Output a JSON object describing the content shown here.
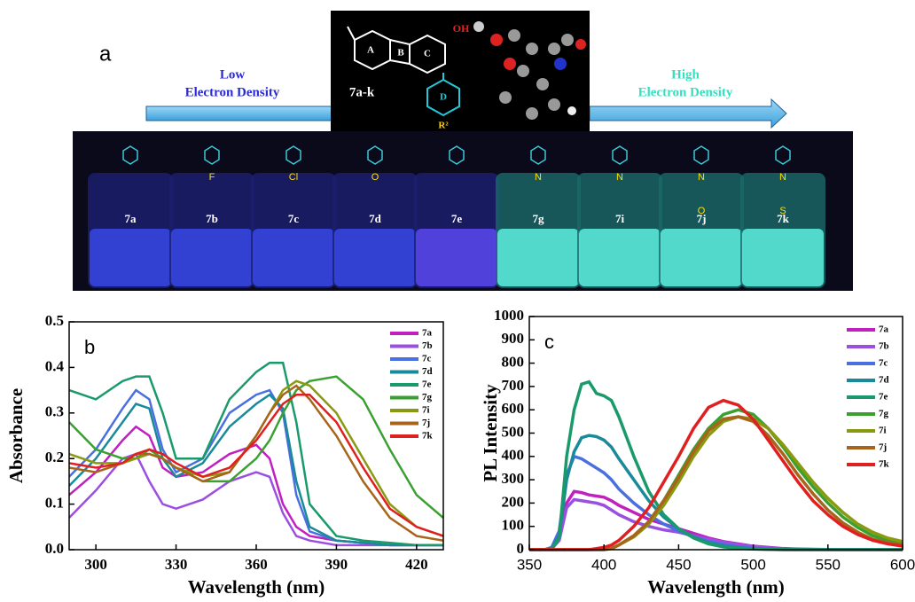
{
  "panel_a": {
    "label": "a",
    "left": [
      "Low",
      "Electron Density"
    ],
    "right": [
      "High",
      "Electron Density"
    ],
    "molecule": {
      "name": "7a-k",
      "rings": [
        "A",
        "B",
        "C",
        "D"
      ],
      "oh": "OH",
      "r": "R²"
    },
    "vials": [
      {
        "label": "7a"
      },
      {
        "label": "7b",
        "atoms": [
          "F"
        ]
      },
      {
        "label": "7c",
        "atoms": [
          "Cl"
        ]
      },
      {
        "label": "7d",
        "atoms": [
          "O"
        ]
      },
      {
        "label": "7e"
      },
      {
        "label": "7g",
        "atoms": [
          "N"
        ]
      },
      {
        "label": "7i",
        "atoms": [
          "N"
        ]
      },
      {
        "label": "7j",
        "atoms": [
          "N",
          "O"
        ]
      },
      {
        "label": "7k",
        "atoms": [
          "N",
          "S"
        ]
      }
    ]
  },
  "chart_data": [
    {
      "type": "line",
      "panel": "b",
      "xlabel": "Wavelength (nm)",
      "ylabel": "Absorbance",
      "x": [
        290,
        300,
        310,
        315,
        320,
        325,
        330,
        340,
        350,
        360,
        365,
        370,
        375,
        380,
        390,
        400,
        410,
        420,
        430
      ],
      "xlim": [
        290,
        430
      ],
      "ylim": [
        0,
        0.5
      ],
      "xticks": [
        300,
        330,
        360,
        390,
        420
      ],
      "yticks": [
        0.0,
        0.1,
        0.2,
        0.3,
        0.4,
        0.5
      ],
      "legend": "upper right",
      "series": [
        {
          "name": "7a",
          "color": "#c020c0",
          "values": [
            0.12,
            0.17,
            0.24,
            0.27,
            0.25,
            0.18,
            0.16,
            0.17,
            0.21,
            0.23,
            0.2,
            0.1,
            0.05,
            0.03,
            0.02,
            0.015,
            0.01,
            0.01,
            0.01
          ]
        },
        {
          "name": "7b",
          "color": "#9b4fe0",
          "values": [
            0.07,
            0.13,
            0.2,
            0.21,
            0.15,
            0.1,
            0.09,
            0.11,
            0.15,
            0.17,
            0.16,
            0.08,
            0.03,
            0.02,
            0.01,
            0.01,
            0.01,
            0.01,
            0.01
          ]
        },
        {
          "name": "7c",
          "color": "#4a6fe0",
          "values": [
            0.16,
            0.22,
            0.31,
            0.35,
            0.33,
            0.22,
            0.17,
            0.2,
            0.3,
            0.34,
            0.35,
            0.3,
            0.12,
            0.04,
            0.02,
            0.015,
            0.01,
            0.01,
            0.01
          ]
        },
        {
          "name": "7d",
          "color": "#1a8a9a",
          "values": [
            0.14,
            0.2,
            0.28,
            0.32,
            0.31,
            0.2,
            0.16,
            0.19,
            0.27,
            0.32,
            0.34,
            0.31,
            0.15,
            0.05,
            0.02,
            0.015,
            0.01,
            0.01,
            0.01
          ]
        },
        {
          "name": "7e",
          "color": "#1a9a6a",
          "values": [
            0.35,
            0.33,
            0.37,
            0.38,
            0.38,
            0.3,
            0.2,
            0.2,
            0.33,
            0.39,
            0.41,
            0.41,
            0.28,
            0.1,
            0.03,
            0.02,
            0.015,
            0.01,
            0.01
          ]
        },
        {
          "name": "7g",
          "color": "#3aa030",
          "values": [
            0.28,
            0.22,
            0.2,
            0.2,
            0.22,
            0.2,
            0.18,
            0.15,
            0.15,
            0.2,
            0.24,
            0.3,
            0.35,
            0.37,
            0.38,
            0.33,
            0.22,
            0.12,
            0.07
          ]
        },
        {
          "name": "7i",
          "color": "#8a9a10",
          "values": [
            0.21,
            0.19,
            0.19,
            0.2,
            0.21,
            0.2,
            0.18,
            0.16,
            0.17,
            0.25,
            0.3,
            0.35,
            0.37,
            0.36,
            0.3,
            0.2,
            0.1,
            0.05,
            0.03
          ]
        },
        {
          "name": "7j",
          "color": "#a8641a",
          "values": [
            0.18,
            0.17,
            0.19,
            0.21,
            0.21,
            0.2,
            0.18,
            0.15,
            0.17,
            0.25,
            0.3,
            0.34,
            0.36,
            0.33,
            0.25,
            0.15,
            0.07,
            0.03,
            0.02
          ]
        },
        {
          "name": "7k",
          "color": "#e02020",
          "values": [
            0.19,
            0.18,
            0.19,
            0.21,
            0.22,
            0.21,
            0.19,
            0.16,
            0.18,
            0.24,
            0.28,
            0.32,
            0.34,
            0.34,
            0.28,
            0.18,
            0.09,
            0.05,
            0.03
          ]
        }
      ]
    },
    {
      "type": "line",
      "panel": "c",
      "xlabel": "Wavelength (nm)",
      "ylabel": "PL Intensity",
      "x": [
        350,
        360,
        365,
        370,
        375,
        380,
        385,
        390,
        395,
        400,
        405,
        410,
        420,
        430,
        440,
        450,
        460,
        470,
        480,
        490,
        500,
        510,
        520,
        530,
        540,
        550,
        560,
        570,
        580,
        590,
        600
      ],
      "xlim": [
        350,
        600
      ],
      "ylim": [
        0,
        1000
      ],
      "xticks": [
        350,
        400,
        450,
        500,
        550,
        600
      ],
      "yticks": [
        0,
        100,
        200,
        300,
        400,
        500,
        600,
        700,
        800,
        900,
        1000
      ],
      "legend": "upper right",
      "series": [
        {
          "name": "7a",
          "color": "#c020c0",
          "values": [
            0,
            0,
            5,
            50,
            200,
            250,
            245,
            235,
            230,
            225,
            210,
            190,
            160,
            130,
            110,
            90,
            70,
            50,
            35,
            25,
            15,
            10,
            5,
            3,
            2,
            1,
            0,
            0,
            0,
            0,
            0
          ]
        },
        {
          "name": "7b",
          "color": "#9b4fe0",
          "values": [
            0,
            0,
            5,
            40,
            180,
            215,
            210,
            205,
            200,
            190,
            170,
            150,
            120,
            100,
            85,
            75,
            60,
            45,
            32,
            22,
            14,
            8,
            4,
            2,
            1,
            0,
            0,
            0,
            0,
            0,
            0
          ]
        },
        {
          "name": "7c",
          "color": "#4a6fe0",
          "values": [
            0,
            0,
            10,
            80,
            320,
            400,
            390,
            370,
            350,
            330,
            300,
            260,
            200,
            150,
            110,
            80,
            55,
            35,
            22,
            12,
            6,
            3,
            1,
            0,
            0,
            0,
            0,
            0,
            0,
            0,
            0
          ]
        },
        {
          "name": "7d",
          "color": "#1a8a9a",
          "values": [
            0,
            0,
            5,
            60,
            300,
            420,
            480,
            490,
            485,
            470,
            440,
            390,
            300,
            210,
            140,
            90,
            55,
            30,
            16,
            8,
            4,
            2,
            0,
            0,
            0,
            0,
            0,
            0,
            0,
            0,
            0
          ]
        },
        {
          "name": "7e",
          "color": "#1a9a6a",
          "values": [
            0,
            0,
            0,
            50,
            400,
            600,
            710,
            720,
            670,
            660,
            640,
            570,
            400,
            250,
            150,
            90,
            50,
            25,
            12,
            6,
            3,
            1,
            0,
            0,
            0,
            0,
            0,
            0,
            0,
            0,
            0
          ]
        },
        {
          "name": "7g",
          "color": "#3aa030",
          "values": [
            0,
            0,
            0,
            0,
            0,
            0,
            0,
            0,
            0,
            0,
            5,
            20,
            60,
            120,
            210,
            320,
            430,
            520,
            580,
            600,
            580,
            520,
            440,
            350,
            270,
            200,
            140,
            95,
            60,
            40,
            25
          ]
        },
        {
          "name": "7i",
          "color": "#8a9a10",
          "values": [
            0,
            0,
            0,
            0,
            0,
            0,
            0,
            0,
            0,
            0,
            5,
            20,
            55,
            110,
            190,
            290,
            400,
            490,
            550,
            570,
            560,
            520,
            450,
            370,
            290,
            220,
            160,
            110,
            75,
            50,
            35
          ]
        },
        {
          "name": "7j",
          "color": "#a8641a",
          "values": [
            0,
            0,
            0,
            0,
            0,
            0,
            0,
            0,
            0,
            0,
            5,
            20,
            60,
            120,
            210,
            310,
            420,
            510,
            560,
            570,
            550,
            490,
            410,
            320,
            240,
            170,
            115,
            75,
            45,
            30,
            20
          ]
        },
        {
          "name": "7k",
          "color": "#e02020",
          "values": [
            0,
            0,
            0,
            0,
            0,
            0,
            0,
            0,
            5,
            10,
            20,
            40,
            100,
            180,
            290,
            400,
            520,
            610,
            640,
            620,
            560,
            470,
            380,
            290,
            210,
            150,
            100,
            65,
            40,
            25,
            15
          ]
        }
      ]
    }
  ]
}
